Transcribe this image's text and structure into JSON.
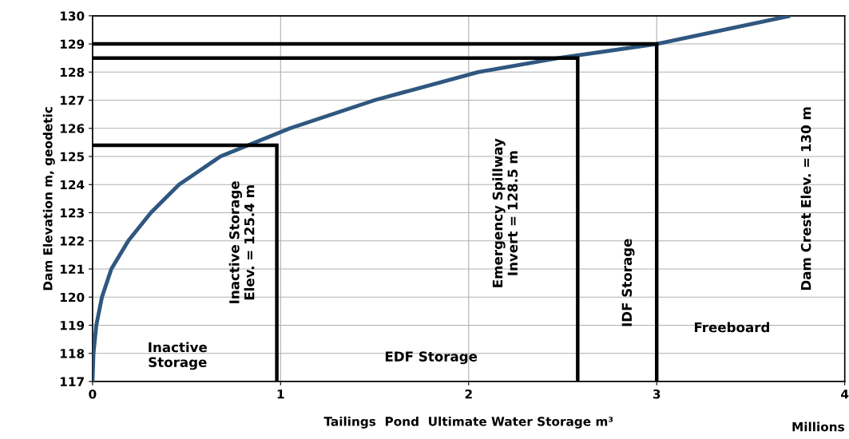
{
  "chart_data": {
    "type": "line",
    "xlabel": "Tailings  Pond  Ultimate Water Storage m³",
    "ylabel": "Dam Elevation m, geodetic",
    "xlim": [
      0,
      4
    ],
    "xticks": [
      0,
      1,
      2,
      3,
      4
    ],
    "ylim": [
      117,
      130
    ],
    "yticks": [
      117,
      118,
      119,
      120,
      121,
      122,
      123,
      124,
      125,
      126,
      127,
      128,
      129,
      130
    ],
    "grid": true,
    "marker": "none",
    "line_style": "solid",
    "series": [
      {
        "color": "#2f5780",
        "x": [
          0,
          0.005,
          0.02,
          0.05,
          0.1,
          0.19,
          0.31,
          0.46,
          0.68,
          1.05,
          1.5,
          2.05,
          2.48,
          3.0,
          3.71
        ],
        "values": [
          117,
          118,
          119,
          120,
          121,
          122,
          123,
          124,
          125,
          126,
          127,
          128,
          128.5,
          129,
          130
        ]
      },
      {
        "color": "#000000",
        "x": [
          0,
          0.98,
          0.98
        ],
        "values": [
          125.4,
          125.4,
          117
        ]
      },
      {
        "color": "#000000",
        "x": [
          0,
          2.58,
          2.58
        ],
        "values": [
          128.5,
          128.5,
          117
        ]
      },
      {
        "color": "#000000",
        "x": [
          0,
          3.0,
          3.0
        ],
        "values": [
          129,
          129,
          117
        ]
      }
    ],
    "annotations": [
      "Inactive Storage\nElev. = 125.4 m",
      "Emergency Spillway\nInvert = 128.5 m",
      "IDF Storage",
      "Dam Crest Elev. = 130 m",
      "Inactive\nStorage",
      "EDF Storage",
      "Freeboard",
      "Millions"
    ]
  }
}
